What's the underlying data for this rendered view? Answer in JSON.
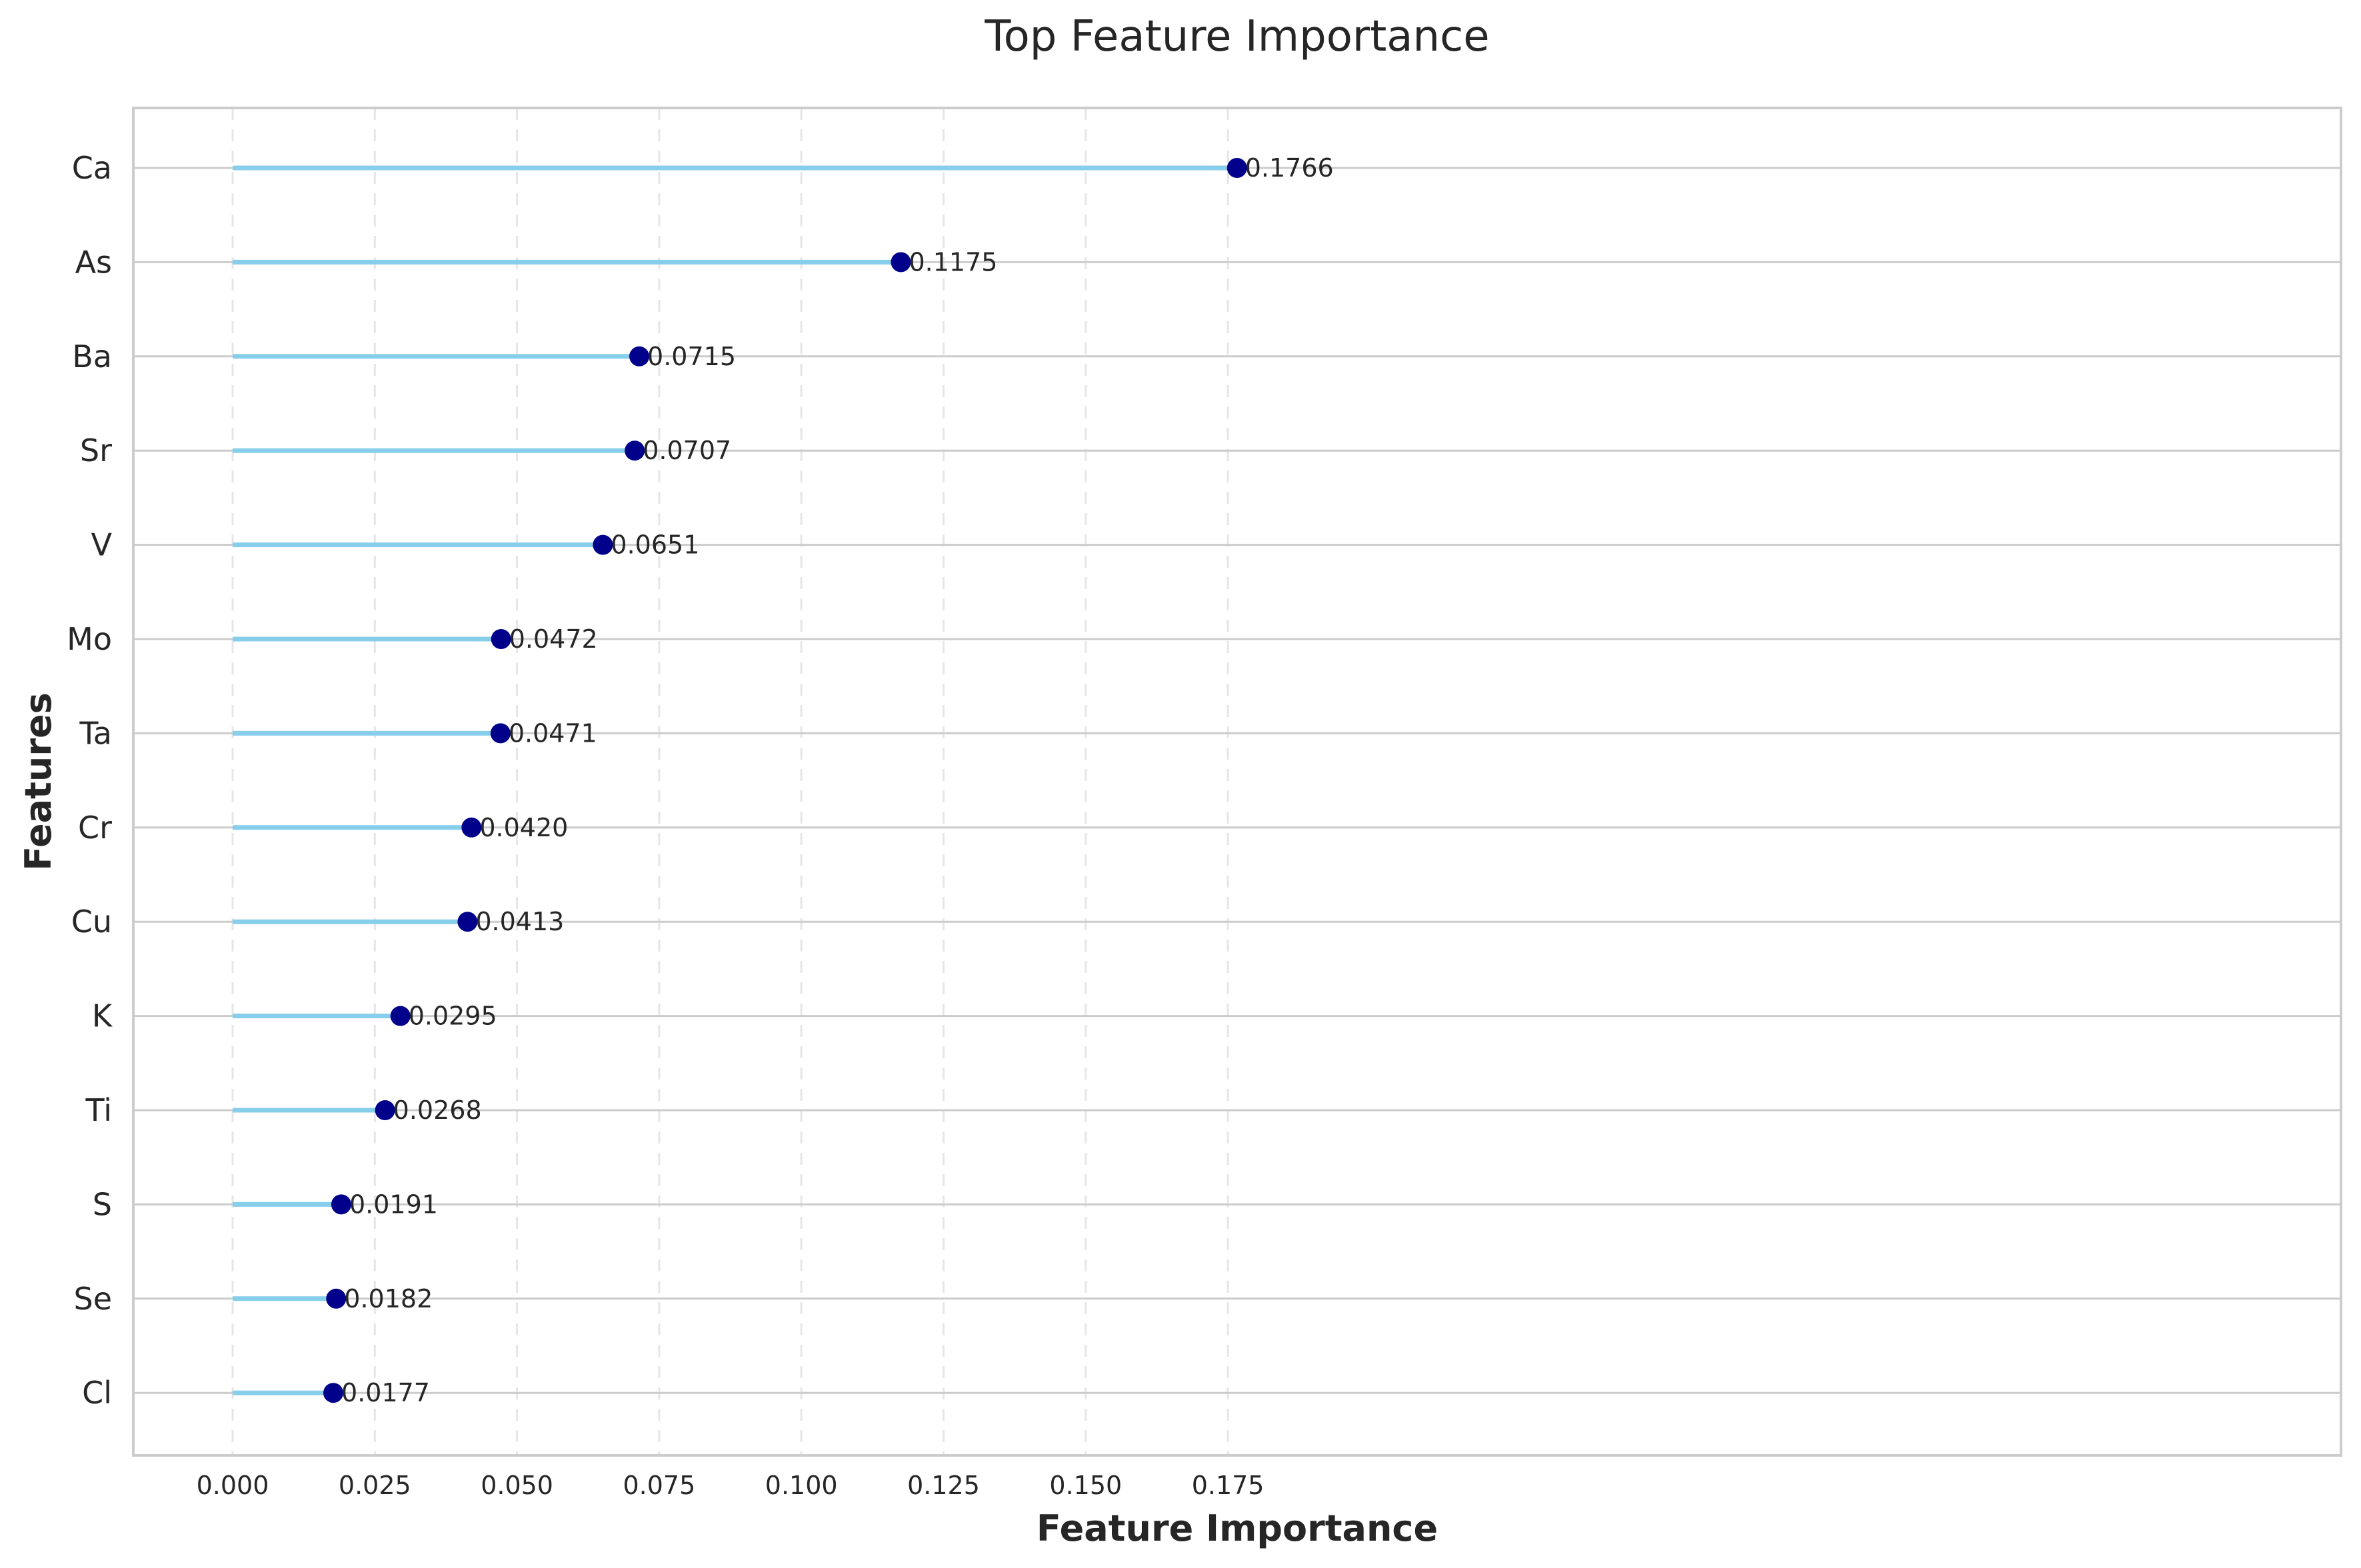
{
  "chart_data": {
    "type": "lollipop",
    "title": "Top Feature Importance",
    "xlabel": "Feature Importance",
    "ylabel": "Features",
    "xlim": [
      -0.0088,
      0.1854
    ],
    "xticks": [
      "0.000",
      "0.025",
      "0.050",
      "0.075",
      "0.100",
      "0.125",
      "0.150",
      "0.175"
    ],
    "xtick_values": [
      0.0,
      0.025,
      0.05,
      0.075,
      0.1,
      0.125,
      0.15,
      0.175
    ],
    "grid": "x dashed, y solid",
    "colors": {
      "stem": "#87CEEB",
      "marker": "#00008B",
      "grid": "#cccccc",
      "frame": "#cccccc"
    },
    "categories": [
      "Ca",
      "As",
      "Ba",
      "Sr",
      "V",
      "Mo",
      "Ta",
      "Cr",
      "Cu",
      "K",
      "Ti",
      "S",
      "Se",
      "Cl"
    ],
    "values": [
      0.1766,
      0.1175,
      0.0715,
      0.0707,
      0.0651,
      0.0472,
      0.0471,
      0.042,
      0.0413,
      0.0295,
      0.0268,
      0.0191,
      0.0182,
      0.0177
    ],
    "value_labels": [
      "0.1766",
      "0.1175",
      "0.0715",
      "0.0707",
      "0.0651",
      "0.0472",
      "0.0471",
      "0.0420",
      "0.0413",
      "0.0295",
      "0.0268",
      "0.0191",
      "0.0182",
      "0.0177"
    ]
  }
}
